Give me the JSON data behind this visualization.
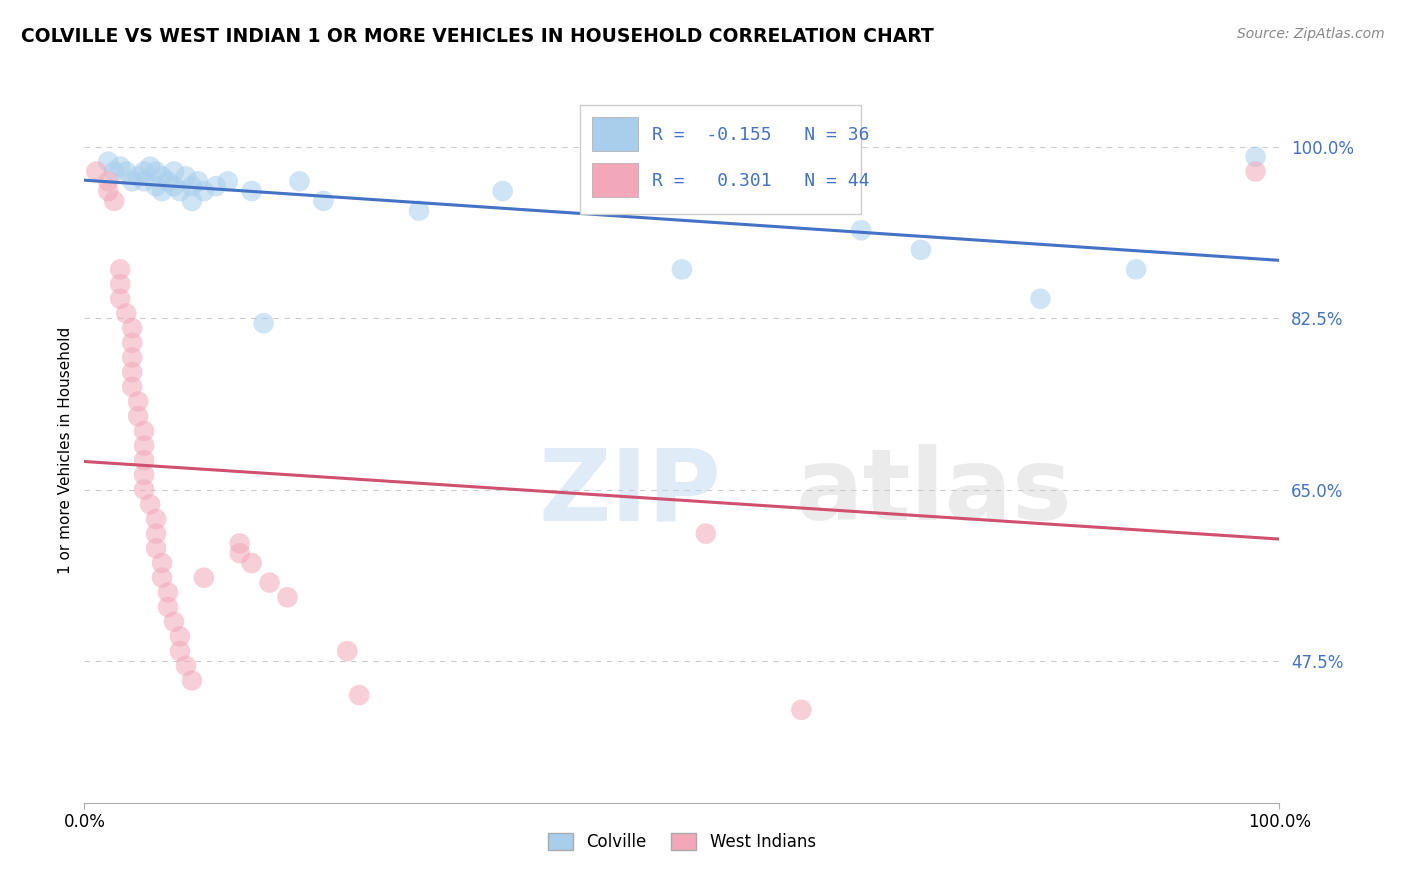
{
  "title": "COLVILLE VS WEST INDIAN 1 OR MORE VEHICLES IN HOUSEHOLD CORRELATION CHART",
  "source": "Source: ZipAtlas.com",
  "ylabel": "1 or more Vehicles in Household",
  "ytick_labels": [
    "47.5%",
    "65.0%",
    "82.5%",
    "100.0%"
  ],
  "ytick_values": [
    0.475,
    0.65,
    0.825,
    1.0
  ],
  "xlim": [
    0.0,
    1.0
  ],
  "ylim": [
    0.33,
    1.05
  ],
  "colville_R": -0.155,
  "colville_N": 36,
  "westindian_R": 0.301,
  "westindian_N": 44,
  "watermark_zip": "ZIP",
  "watermark_atlas": "atlas",
  "colville_color": "#A8CEEC",
  "westindian_color": "#F2A8B8",
  "colville_line_color": "#4472C4",
  "westindian_line_color": "#D05070",
  "colville_points": [
    [
      0.02,
      0.985
    ],
    [
      0.025,
      0.975
    ],
    [
      0.03,
      0.98
    ],
    [
      0.035,
      0.975
    ],
    [
      0.04,
      0.965
    ],
    [
      0.045,
      0.97
    ],
    [
      0.05,
      0.975
    ],
    [
      0.05,
      0.965
    ],
    [
      0.055,
      0.98
    ],
    [
      0.06,
      0.975
    ],
    [
      0.06,
      0.96
    ],
    [
      0.065,
      0.97
    ],
    [
      0.065,
      0.955
    ],
    [
      0.07,
      0.965
    ],
    [
      0.075,
      0.975
    ],
    [
      0.075,
      0.96
    ],
    [
      0.08,
      0.955
    ],
    [
      0.085,
      0.97
    ],
    [
      0.09,
      0.96
    ],
    [
      0.09,
      0.945
    ],
    [
      0.095,
      0.965
    ],
    [
      0.1,
      0.955
    ],
    [
      0.11,
      0.96
    ],
    [
      0.12,
      0.965
    ],
    [
      0.14,
      0.955
    ],
    [
      0.15,
      0.82
    ],
    [
      0.18,
      0.965
    ],
    [
      0.2,
      0.945
    ],
    [
      0.28,
      0.935
    ],
    [
      0.35,
      0.955
    ],
    [
      0.5,
      0.875
    ],
    [
      0.65,
      0.915
    ],
    [
      0.7,
      0.895
    ],
    [
      0.8,
      0.845
    ],
    [
      0.88,
      0.875
    ],
    [
      0.98,
      0.99
    ]
  ],
  "westindian_points": [
    [
      0.01,
      0.975
    ],
    [
      0.02,
      0.965
    ],
    [
      0.02,
      0.955
    ],
    [
      0.025,
      0.945
    ],
    [
      0.03,
      0.875
    ],
    [
      0.03,
      0.86
    ],
    [
      0.03,
      0.845
    ],
    [
      0.035,
      0.83
    ],
    [
      0.04,
      0.815
    ],
    [
      0.04,
      0.8
    ],
    [
      0.04,
      0.785
    ],
    [
      0.04,
      0.77
    ],
    [
      0.04,
      0.755
    ],
    [
      0.045,
      0.74
    ],
    [
      0.045,
      0.725
    ],
    [
      0.05,
      0.71
    ],
    [
      0.05,
      0.695
    ],
    [
      0.05,
      0.68
    ],
    [
      0.05,
      0.665
    ],
    [
      0.05,
      0.65
    ],
    [
      0.055,
      0.635
    ],
    [
      0.06,
      0.62
    ],
    [
      0.06,
      0.605
    ],
    [
      0.06,
      0.59
    ],
    [
      0.065,
      0.575
    ],
    [
      0.065,
      0.56
    ],
    [
      0.07,
      0.545
    ],
    [
      0.07,
      0.53
    ],
    [
      0.075,
      0.515
    ],
    [
      0.08,
      0.5
    ],
    [
      0.08,
      0.485
    ],
    [
      0.085,
      0.47
    ],
    [
      0.09,
      0.455
    ],
    [
      0.1,
      0.56
    ],
    [
      0.13,
      0.595
    ],
    [
      0.13,
      0.585
    ],
    [
      0.14,
      0.575
    ],
    [
      0.155,
      0.555
    ],
    [
      0.17,
      0.54
    ],
    [
      0.22,
      0.485
    ],
    [
      0.23,
      0.44
    ],
    [
      0.52,
      0.605
    ],
    [
      0.6,
      0.425
    ],
    [
      0.98,
      0.975
    ]
  ]
}
